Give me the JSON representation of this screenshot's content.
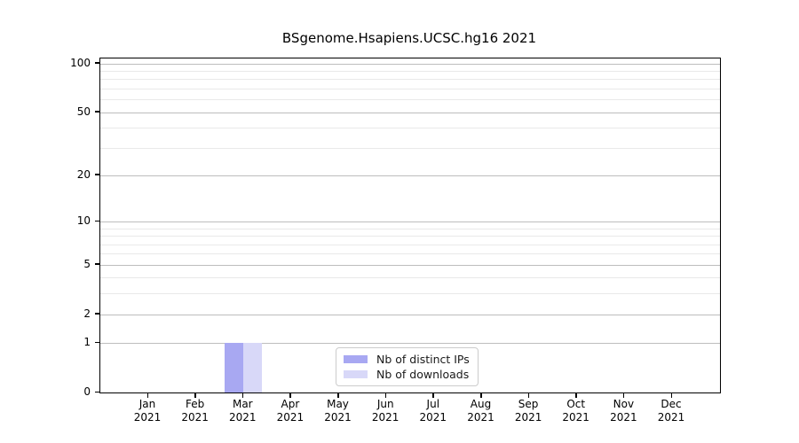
{
  "title": "BSgenome.Hsapiens.UCSC.hg16 2021",
  "chart_data": {
    "type": "bar",
    "title": "BSgenome.Hsapiens.UCSC.hg16 2021",
    "categories": [
      "Jan 2021",
      "Feb 2021",
      "Mar 2021",
      "Apr 2021",
      "May 2021",
      "Jun 2021",
      "Jul 2021",
      "Aug 2021",
      "Sep 2021",
      "Oct 2021",
      "Nov 2021",
      "Dec 2021"
    ],
    "series": [
      {
        "name": "Nb of distinct IPs",
        "color": "#a8a8f2",
        "values": [
          0,
          0,
          1,
          0,
          0,
          0,
          0,
          0,
          0,
          0,
          0,
          0
        ]
      },
      {
        "name": "Nb of downloads",
        "color": "#d8d8f8",
        "values": [
          0,
          0,
          1,
          0,
          0,
          0,
          0,
          0,
          0,
          0,
          0,
          0
        ]
      }
    ],
    "xlabel": "",
    "ylabel": "",
    "yscale": "log1p",
    "ylim": [
      0,
      106
    ],
    "y_major_ticks": [
      0,
      1,
      2,
      5,
      10,
      20,
      50,
      100
    ],
    "y_major_tick_labels": [
      "0",
      "1",
      "2",
      "5",
      "10",
      "20",
      "50",
      "100"
    ],
    "y_minor_ticks": [
      3,
      4,
      6,
      7,
      8,
      9,
      30,
      40,
      60,
      70,
      80,
      90
    ],
    "grid": "horizontal",
    "legend_position": "bottom-center-inside"
  },
  "colors": {
    "distinct_ips_bar": "#a8a8f2",
    "downloads_bar": "#d8d8f8",
    "axis": "#000000",
    "grid_major": "#bdbdbd",
    "grid_minor": "#e9e9e9",
    "legend_border": "#cccccc"
  }
}
